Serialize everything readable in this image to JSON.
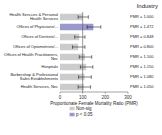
{
  "chart_data": {
    "type": "bar",
    "orientation": "horizontal",
    "title": "Industry",
    "xlabel": "Proportionate Female Mortality Ratio (PMR)",
    "categories": [
      "Health Serv.ces & Personal Health Services",
      "Offices of Physicians/...",
      "Offices of Dentists/...",
      "Offices of Optometrists/...",
      "Offices of Health Practitioners, Nec",
      "Hospitals",
      "Barbershop & Professional Sales Establishments",
      "Health Services, Nec"
    ],
    "series": [
      {
        "name": "Non-sig",
        "color": "#cccccc",
        "values": [
          100,
          null,
          85,
          80,
          110,
          115,
          108,
          105
        ],
        "ci_low": [
          80,
          null,
          65,
          55,
          85,
          90,
          82,
          80
        ],
        "ci_high": [
          125,
          null,
          110,
          110,
          140,
          145,
          138,
          135
        ]
      },
      {
        "name": "p < 0.05",
        "color": "#9999cc",
        "values": [
          null,
          147,
          null,
          null,
          null,
          null,
          null,
          null
        ],
        "ci_low": [
          null,
          120,
          null,
          null,
          null,
          null,
          null,
          null
        ],
        "ci_high": [
          null,
          180,
          null,
          null,
          null,
          null,
          null,
          null
        ]
      }
    ],
    "annotations": [
      "PMR = 1.000",
      "PMR = 1.472",
      "PMR = 0.848",
      "PMR = 0.800",
      "PMR = 1.100",
      "PMR = 1.150",
      "PMR = 1.080",
      "PMR = 1.050"
    ],
    "reference_line": 100,
    "xlim": [
      0,
      300
    ],
    "xticks": [
      0,
      100,
      200,
      300
    ]
  }
}
